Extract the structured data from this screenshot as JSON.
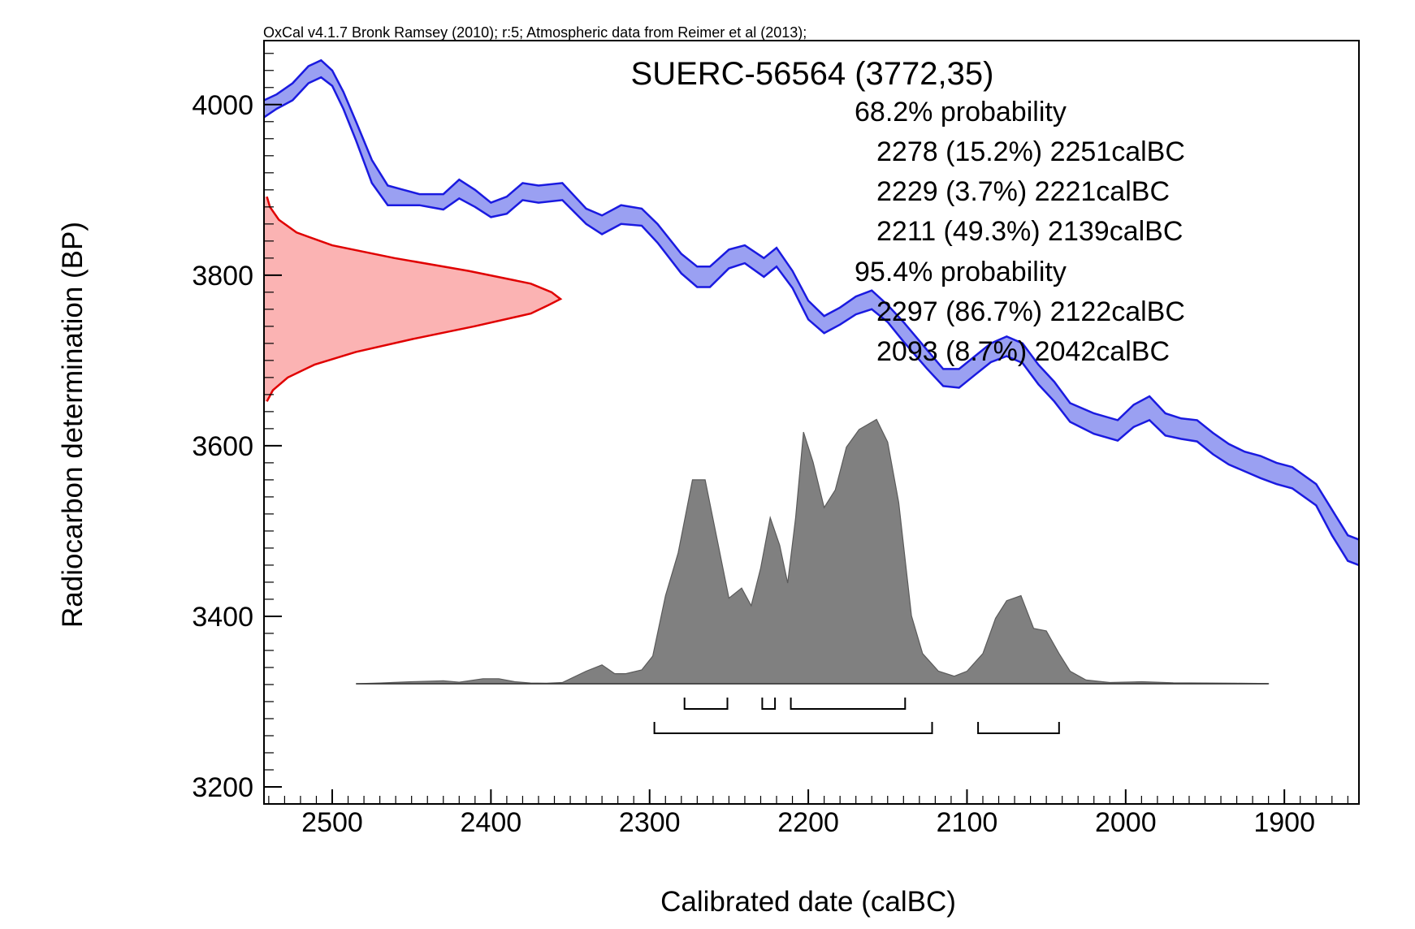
{
  "chart_data": {
    "type": "area",
    "header": "OxCal v4.1.7 Bronk Ramsey (2010); r:5; Atmospheric data from Reimer et al (2013);",
    "title": "SUERC-56564 (3772,35)",
    "xlabel": "Calibrated date (calBC)",
    "ylabel": "Radiocarbon determination (BP)",
    "xlim": [
      2543,
      1853
    ],
    "ylim": [
      3180,
      4075
    ],
    "x_ticks": [
      2500,
      2400,
      2300,
      2200,
      2100,
      2000,
      1900
    ],
    "x_tick_labels": [
      "2500",
      "2400",
      "2300",
      "2200",
      "2100",
      "2000",
      "1900"
    ],
    "y_ticks": [
      3200,
      3400,
      3600,
      3800,
      4000
    ],
    "y_tick_labels": [
      "3200",
      "3400",
      "3600",
      "3800",
      "4000"
    ],
    "annotations": [
      "68.2% probability",
      "2278 (15.2%) 2251calBC",
      "2229 (3.7%) 2221calBC",
      "2211 (49.3%) 2139calBC",
      "95.4% probability",
      "2297 (86.7%) 2122calBC",
      "2093 (8.7%) 2042calBC"
    ],
    "colors": {
      "calibration_fill": "#9aa0f2",
      "calibration_line": "#1a1ae0",
      "radiocarbon_fill": "#fbb3b3",
      "radiocarbon_line": "#e00000",
      "posterior_fill": "#808080",
      "posterior_line": "#5a5a5a"
    },
    "radiocarbon_measurement": {
      "mean": 3772,
      "sd": 35
    },
    "calibration_curve": {
      "x": [
        2543,
        2535,
        2525,
        2515,
        2507,
        2500,
        2493,
        2485,
        2475,
        2465,
        2455,
        2445,
        2430,
        2420,
        2410,
        2400,
        2390,
        2380,
        2370,
        2355,
        2340,
        2330,
        2318,
        2305,
        2295,
        2280,
        2270,
        2262,
        2250,
        2240,
        2228,
        2220,
        2210,
        2200,
        2190,
        2180,
        2170,
        2160,
        2150,
        2140,
        2125,
        2115,
        2105,
        2095,
        2085,
        2075,
        2065,
        2055,
        2045,
        2035,
        2020,
        2005,
        1995,
        1985,
        1975,
        1965,
        1955,
        1945,
        1935,
        1925,
        1915,
        1905,
        1895,
        1880,
        1870,
        1860,
        1853
      ],
      "upper": [
        4005,
        4012,
        4025,
        4045,
        4052,
        4040,
        4015,
        3980,
        3935,
        3905,
        3900,
        3895,
        3895,
        3912,
        3900,
        3885,
        3892,
        3908,
        3905,
        3908,
        3878,
        3870,
        3882,
        3878,
        3860,
        3825,
        3810,
        3810,
        3830,
        3835,
        3820,
        3832,
        3805,
        3770,
        3752,
        3762,
        3775,
        3782,
        3765,
        3745,
        3712,
        3690,
        3690,
        3705,
        3720,
        3728,
        3720,
        3695,
        3675,
        3650,
        3638,
        3630,
        3648,
        3658,
        3638,
        3632,
        3630,
        3615,
        3602,
        3593,
        3588,
        3580,
        3575,
        3555,
        3525,
        3495,
        3490
      ],
      "lower": [
        3985,
        3995,
        4005,
        4025,
        4032,
        4022,
        3995,
        3958,
        3908,
        3882,
        3882,
        3882,
        3877,
        3890,
        3880,
        3868,
        3872,
        3888,
        3885,
        3888,
        3860,
        3848,
        3860,
        3858,
        3838,
        3802,
        3786,
        3786,
        3808,
        3814,
        3798,
        3810,
        3785,
        3748,
        3732,
        3742,
        3754,
        3760,
        3745,
        3722,
        3690,
        3670,
        3668,
        3683,
        3698,
        3705,
        3697,
        3672,
        3652,
        3628,
        3614,
        3606,
        3622,
        3630,
        3612,
        3608,
        3605,
        3590,
        3578,
        3570,
        3562,
        3555,
        3550,
        3530,
        3495,
        3465,
        3460
      ]
    },
    "radiocarbon_density": {
      "y": [
        3652,
        3665,
        3680,
        3695,
        3710,
        3725,
        3740,
        3755,
        3765,
        3772,
        3780,
        3790,
        3805,
        3820,
        3835,
        3850,
        3865,
        3880,
        3892
      ],
      "value": [
        0.01,
        0.03,
        0.08,
        0.17,
        0.31,
        0.5,
        0.71,
        0.9,
        0.96,
        1.0,
        0.97,
        0.9,
        0.69,
        0.44,
        0.23,
        0.11,
        0.05,
        0.02,
        0.01
      ]
    },
    "posterior_density": {
      "x": [
        2485,
        2470,
        2450,
        2430,
        2420,
        2405,
        2395,
        2385,
        2375,
        2365,
        2355,
        2340,
        2330,
        2322,
        2315,
        2305,
        2298,
        2290,
        2282,
        2273,
        2265,
        2257,
        2250,
        2242,
        2236,
        2230,
        2224,
        2218,
        2213,
        2208,
        2203,
        2197,
        2190,
        2183,
        2176,
        2168,
        2157,
        2150,
        2143,
        2135,
        2128,
        2118,
        2108,
        2100,
        2090,
        2082,
        2075,
        2066,
        2058,
        2050,
        2042,
        2035,
        2025,
        2010,
        1990,
        1970,
        1950,
        1930,
        1910
      ],
      "value": [
        0.0,
        0.003,
        0.008,
        0.012,
        0.006,
        0.02,
        0.02,
        0.008,
        0.003,
        0.002,
        0.005,
        0.05,
        0.075,
        0.04,
        0.04,
        0.055,
        0.11,
        0.35,
        0.52,
        0.81,
        0.81,
        0.56,
        0.34,
        0.38,
        0.31,
        0.46,
        0.66,
        0.55,
        0.4,
        0.66,
        1.0,
        0.88,
        0.7,
        0.77,
        0.94,
        1.01,
        1.05,
        0.96,
        0.72,
        0.27,
        0.12,
        0.05,
        0.03,
        0.05,
        0.12,
        0.26,
        0.33,
        0.35,
        0.22,
        0.21,
        0.12,
        0.05,
        0.015,
        0.005,
        0.008,
        0.004,
        0.003,
        0.002,
        0.001
      ]
    },
    "ranges_68": [
      [
        2278,
        2251
      ],
      [
        2229,
        2221
      ],
      [
        2211,
        2139
      ]
    ],
    "ranges_95": [
      [
        2297,
        2122
      ],
      [
        2093,
        2042
      ]
    ]
  }
}
